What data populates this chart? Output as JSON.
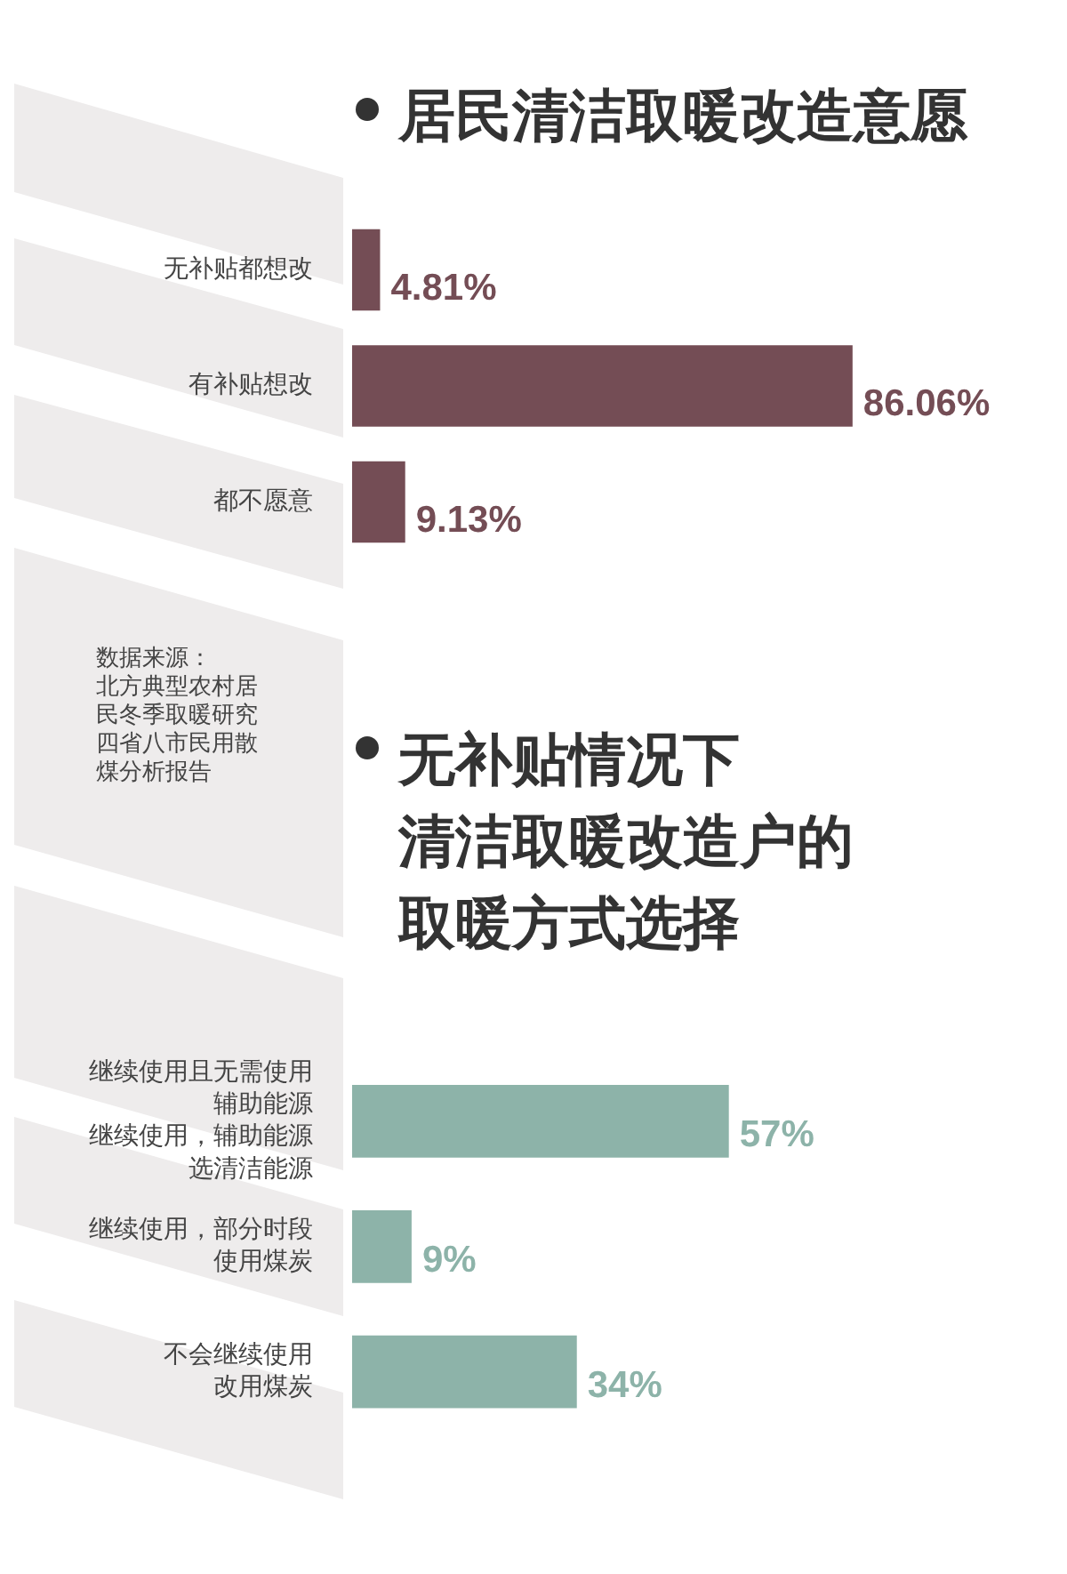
{
  "chart_data": [
    {
      "type": "bar",
      "orientation": "horizontal",
      "title": "居民清洁取暖改造意愿",
      "categories": [
        "无补贴都想改",
        "有补贴想改",
        "都不愿意"
      ],
      "values": [
        4.81,
        86.06,
        9.13
      ],
      "value_labels": [
        "4.81%",
        "86.06%",
        "9.13%"
      ],
      "color": "#744d55",
      "tick_labels": "y",
      "annotations": [
        "数据来源：北方典型农村居民冬季取暖研究四省八市民用散煤分析报告"
      ]
    },
    {
      "type": "bar",
      "orientation": "horizontal",
      "title": "无补贴情况下清洁取暖改造户的取暖方式选择",
      "categories": [
        "继续使用且无需使用辅助能源继续使用，辅助能源选清洁能源",
        "继续使用，部分时段使用煤炭",
        "不会继续使用改用煤炭"
      ],
      "values": [
        57,
        9,
        34
      ],
      "value_labels": [
        "57%",
        "9%",
        "34%"
      ],
      "color": "#8db3a9",
      "tick_labels": "y"
    }
  ]
}
